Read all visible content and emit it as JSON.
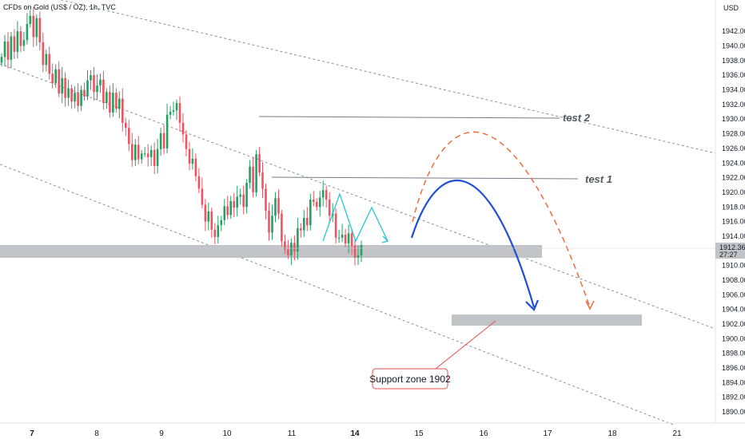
{
  "chart_data": {
    "type": "candlestick",
    "title": "CFDs on Gold (US$ / OZ), 1h, TVC",
    "currency": "USD",
    "y_range": [
      1888,
      1946
    ],
    "y_ticks": [
      1890,
      1892,
      1894,
      1896,
      1898,
      1900,
      1902,
      1904,
      1906,
      1908,
      1910,
      1912,
      1914,
      1916,
      1918,
      1920,
      1922,
      1924,
      1926,
      1928,
      1930,
      1932,
      1934,
      1936,
      1938,
      1940,
      1942
    ],
    "x_ticks": [
      {
        "day": 7,
        "label": "7",
        "bold": true
      },
      {
        "day": 8,
        "label": "8",
        "bold": false
      },
      {
        "day": 9,
        "label": "9",
        "bold": false
      },
      {
        "day": 10,
        "label": "10",
        "bold": false
      },
      {
        "day": 11,
        "label": "11",
        "bold": false
      },
      {
        "day": 14,
        "label": "14",
        "bold": true
      },
      {
        "day": 15,
        "label": "15",
        "bold": false
      },
      {
        "day": 16,
        "label": "16",
        "bold": false
      },
      {
        "day": 17,
        "label": "17",
        "bold": false
      },
      {
        "day": 18,
        "label": "18",
        "bold": false
      },
      {
        "day": 21,
        "label": "21",
        "bold": false
      }
    ],
    "last_price": {
      "value": 1912.36,
      "label": "1912.36",
      "countdown": "27:27"
    },
    "candle_closes": [
      1938.5,
      1940.6,
      1938.1,
      1941.3,
      1939.2,
      1942.0,
      1940.0,
      1940.8,
      1943.0,
      1944.1,
      1941.2,
      1943.8,
      1940.5,
      1937.4,
      1938.9,
      1936.2,
      1934.9,
      1936.8,
      1933.5,
      1935.6,
      1932.9,
      1934.2,
      1932.4,
      1933.6,
      1931.8,
      1934.0,
      1933.1,
      1935.3,
      1936.0,
      1933.7,
      1934.6,
      1935.4,
      1932.2,
      1933.7,
      1930.9,
      1933.6,
      1931.4,
      1932.8,
      1929.5,
      1928.8,
      1926.6,
      1924.4,
      1926.5,
      1924.5,
      1925.3,
      1925.3,
      1924.8,
      1925.8,
      1923.6,
      1925.9,
      1928.1,
      1926.0,
      1930.6,
      1931.0,
      1931.2,
      1932.2,
      1929.5,
      1927.9,
      1925.9,
      1923.9,
      1924.6,
      1922.2,
      1920.5,
      1918.3,
      1916.0,
      1917.4,
      1914.9,
      1913.9,
      1915.5,
      1916.2,
      1918.1,
      1916.9,
      1918.8,
      1917.9,
      1919.4,
      1919.7,
      1918.0,
      1921.3,
      1923.5,
      1920.0,
      1925.2,
      1922.7,
      1920.5,
      1917.5,
      1914.5,
      1916.8,
      1919.2,
      1917.1,
      1913.3,
      1912.2,
      1911.4,
      1913.1,
      1911.9,
      1915.1,
      1914.8,
      1916.5,
      1915.5,
      1919.0,
      1918.7,
      1918.0,
      1919.3,
      1920.3,
      1919.0,
      1916.8,
      1917.1,
      1913.8,
      1913.8,
      1914.2,
      1913.0,
      1914.4,
      1912.7,
      1911.1,
      1911.4,
      1912.8
    ],
    "series": [
      {
        "label": "test 2",
        "value": 1930.0
      },
      {
        "label": "test 1",
        "value": 1921.9
      }
    ],
    "zones": [
      {
        "value_low": 1911.2,
        "value_high": 1912.9
      },
      {
        "value_low": 1901.7,
        "value_high": 1903.1
      }
    ],
    "annotation": "Support zone 1902"
  }
}
